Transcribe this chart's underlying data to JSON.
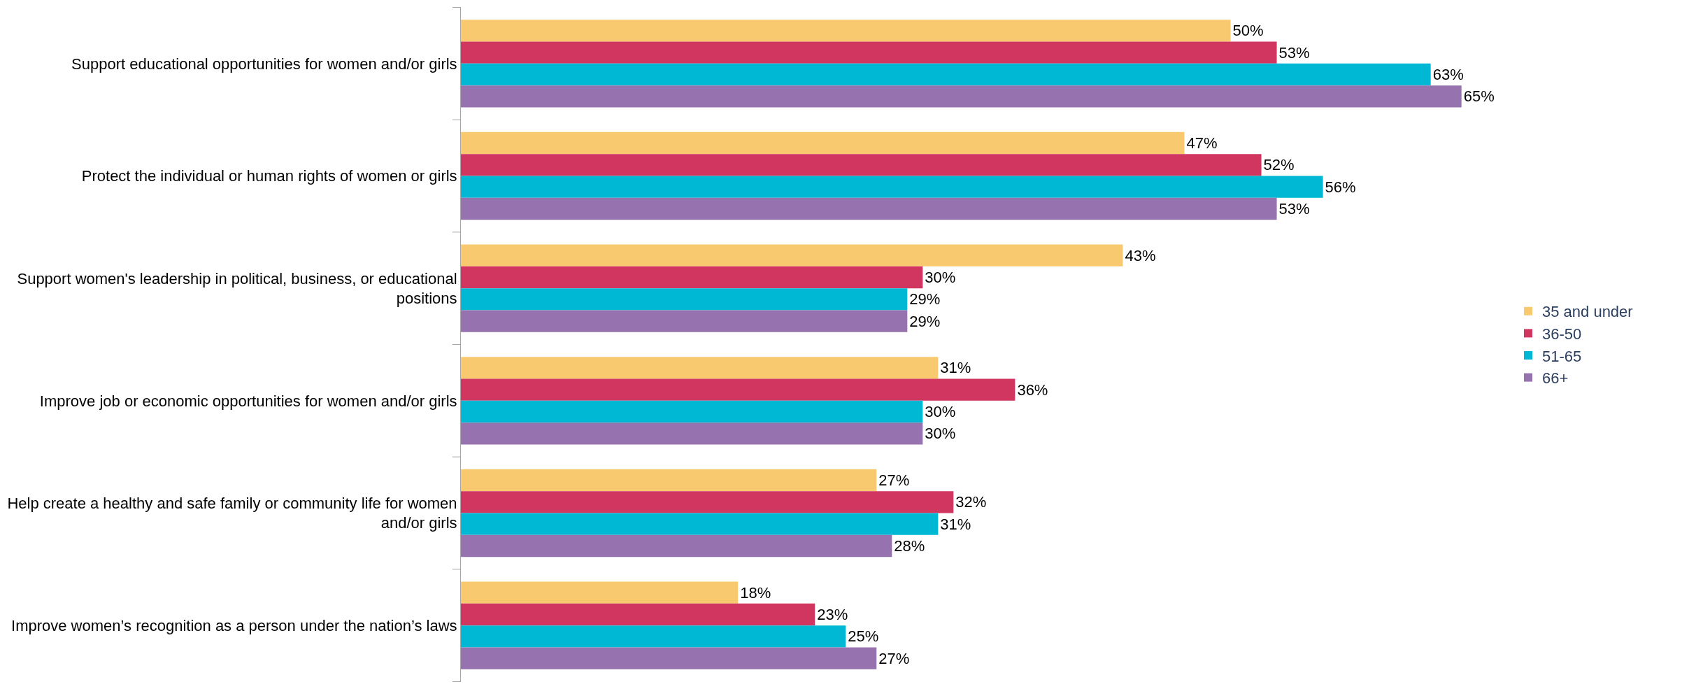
{
  "chart_data": {
    "type": "bar",
    "orientation": "horizontal",
    "legend": "right",
    "categories": [
      "Support educational opportunities for women and/or girls",
      "Protect the individual or human rights of women or girls",
      "Support women's leadership in political, business, or educational positions",
      "Improve job or economic opportunities for women and/or girls",
      "Help create a healthy and safe family or community life for women and/or girls",
      "Improve women’s recognition as a person under the nation’s laws"
    ],
    "series": [
      {
        "name": "35 and under",
        "color": "#f8c96e",
        "values": [
          50,
          47,
          43,
          31,
          27,
          18
        ],
        "value_labels": [
          "50%",
          "47%",
          "43%",
          "31%",
          "27%",
          "18%"
        ]
      },
      {
        "name": "36-50",
        "color": "#d13660",
        "values": [
          53,
          52,
          30,
          36,
          32,
          23
        ],
        "value_labels": [
          "53%",
          "52%",
          "30%",
          "36%",
          "32%",
          "23%"
        ]
      },
      {
        "name": "51-65",
        "color": "#00b8d4",
        "values": [
          63,
          56,
          29,
          30,
          31,
          25
        ],
        "value_labels": [
          "63%",
          "56%",
          "29%",
          "30%",
          "31%",
          "25%"
        ]
      },
      {
        "name": "66+",
        "color": "#9673ae",
        "values": [
          65,
          53,
          29,
          30,
          28,
          27
        ],
        "value_labels": [
          "65%",
          "53%",
          "29%",
          "30%",
          "28%",
          "27%"
        ]
      }
    ]
  }
}
